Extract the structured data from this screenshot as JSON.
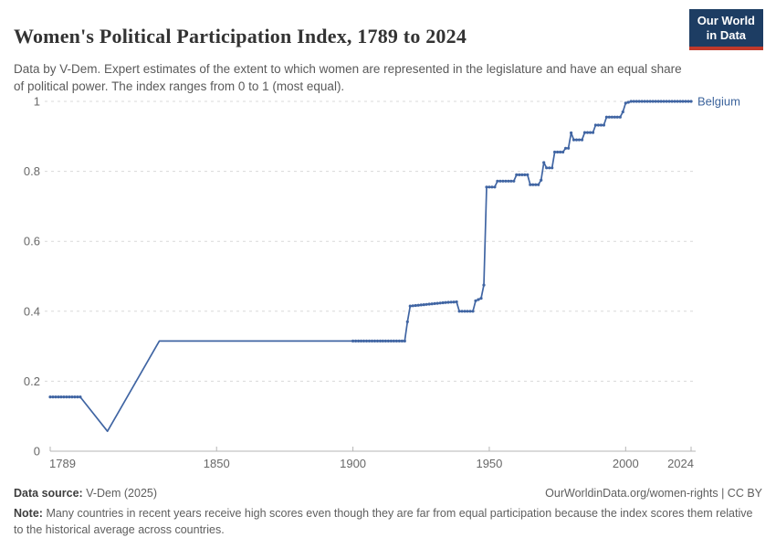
{
  "header": {
    "title": "Women's Political Participation Index, 1789 to 2024",
    "subtitle": "Data by V-Dem. Expert estimates of the extent to which women are represented in the legislature and have an equal share of political power. The index ranges from 0 to 1 (most equal)."
  },
  "logo": {
    "line1": "Our World",
    "line2": "in Data"
  },
  "footer": {
    "source_label": "Data source:",
    "source_value": "V-Dem (2025)",
    "right": "OurWorldinData.org/women-rights | CC BY",
    "note_label": "Note:",
    "note_text": "Many countries in recent years receive high scores even though they are far from equal participation because the index scores them relative to the historical average across countries."
  },
  "colors": {
    "line": "#4065a3",
    "entity_label": "#3d649c",
    "grid": "#d9d9d9",
    "axis": "#b5b5b5",
    "tick_text": "#686868",
    "logo_bg": "#1d3d63",
    "logo_accent": "#c0392b"
  },
  "chart_data": {
    "type": "line",
    "title": "Women's Political Participation Index, 1789 to 2024",
    "xlabel": "",
    "ylabel": "",
    "x_range": [
      1789,
      2024
    ],
    "ylim": [
      0,
      1
    ],
    "grid": "horizontal-dashed",
    "legend_position": "end-of-line",
    "x_ticks": [
      1789,
      1850,
      1900,
      1950,
      2000,
      2024
    ],
    "x_tick_labels": [
      "1789",
      "1850",
      "1900",
      "1950",
      "2000",
      "2024"
    ],
    "y_ticks": [
      0,
      0.2,
      0.4,
      0.6,
      0.8,
      1
    ],
    "y_tick_labels": [
      "0",
      "0.2",
      "0.4",
      "0.6",
      "0.8",
      "1"
    ],
    "series": [
      {
        "name": "Belgium",
        "points": [
          [
            1789,
            0.155
          ],
          [
            1800,
            0.155
          ],
          [
            1810,
            0.057
          ],
          [
            1829,
            0.315
          ],
          [
            1919,
            0.315
          ],
          [
            1920,
            0.37
          ],
          [
            1921,
            0.415
          ],
          [
            1934,
            0.425
          ],
          [
            1938,
            0.427
          ],
          [
            1939,
            0.4
          ],
          [
            1944,
            0.4
          ],
          [
            1945,
            0.43
          ],
          [
            1947,
            0.437
          ],
          [
            1948,
            0.475
          ],
          [
            1949,
            0.755
          ],
          [
            1952,
            0.755
          ],
          [
            1953,
            0.772
          ],
          [
            1959,
            0.772
          ],
          [
            1960,
            0.79
          ],
          [
            1964,
            0.79
          ],
          [
            1965,
            0.762
          ],
          [
            1968,
            0.762
          ],
          [
            1969,
            0.775
          ],
          [
            1970,
            0.825
          ],
          [
            1971,
            0.81
          ],
          [
            1973,
            0.81
          ],
          [
            1974,
            0.855
          ],
          [
            1977,
            0.855
          ],
          [
            1978,
            0.866
          ],
          [
            1979,
            0.866
          ],
          [
            1980,
            0.91
          ],
          [
            1981,
            0.89
          ],
          [
            1984,
            0.89
          ],
          [
            1985,
            0.911
          ],
          [
            1988,
            0.911
          ],
          [
            1989,
            0.932
          ],
          [
            1992,
            0.932
          ],
          [
            1993,
            0.955
          ],
          [
            1998,
            0.955
          ],
          [
            1999,
            0.97
          ],
          [
            2000,
            0.995
          ],
          [
            2002,
            1.0
          ],
          [
            2024,
            1.0
          ]
        ],
        "marker_year_ranges": [
          [
            1789,
            1800
          ],
          [
            1900,
            2024
          ]
        ]
      }
    ]
  }
}
